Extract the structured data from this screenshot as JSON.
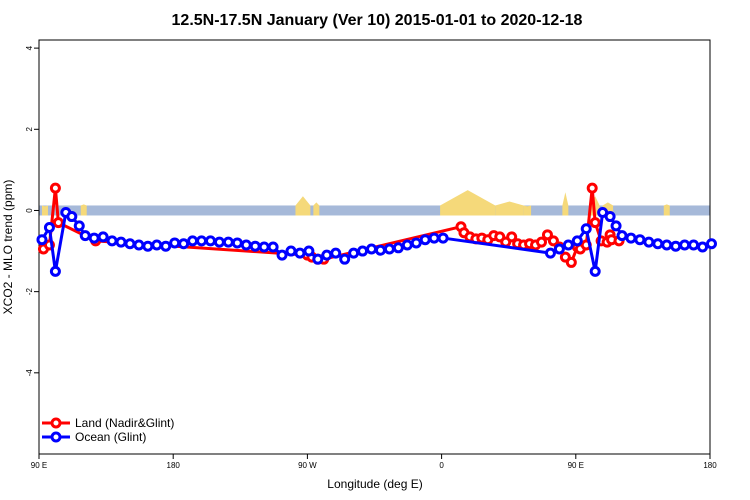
{
  "chart_data": {
    "type": "line",
    "title": "12.5N-17.5N January (Ver 10)   2015-01-01 to 2020-12-18",
    "xlabel": "Longitude (deg E)",
    "ylabel": "XCO2 - MLO trend (ppm)",
    "x_ticks": [
      {
        "value": 90,
        "label": "90 E"
      },
      {
        "value": 180,
        "label": "180"
      },
      {
        "value": 270,
        "label": "90 W"
      },
      {
        "value": 360,
        "label": "0"
      },
      {
        "value": 450,
        "label": "90 E"
      },
      {
        "value": 540,
        "label": "180"
      }
    ],
    "y_ticks": [
      {
        "value": 4,
        "label": "4"
      },
      {
        "value": 2,
        "label": "2"
      },
      {
        "value": 0,
        "label": "0"
      },
      {
        "value": -2,
        "label": "-2"
      },
      {
        "value": -4,
        "label": "-4"
      }
    ],
    "xlim": [
      90,
      540
    ],
    "ylim": [
      -6,
      4.2
    ],
    "grid": false,
    "legend_position": "bottom-left",
    "colors": {
      "land": "#ff0000",
      "ocean": "#0000ff",
      "land_mask": "#f5d97a",
      "ocean_mask": "#a6b9d9"
    },
    "series": [
      {
        "name": "Land (Nadir&Glint)",
        "color": "#ff0000",
        "x": [
          93,
          97,
          101,
          103,
          128,
          270,
          273,
          277,
          281,
          373,
          375,
          379,
          383,
          387,
          391,
          395,
          399,
          403,
          407,
          411,
          415,
          419,
          423,
          427,
          431,
          435,
          439,
          443,
          447,
          451,
          453,
          457,
          461,
          463,
          467,
          471,
          473,
          474,
          479
        ],
        "y": [
          -0.95,
          -0.85,
          0.55,
          -0.3,
          -0.75,
          -1.1,
          -1.15,
          -1.2,
          -1.2,
          -0.4,
          -0.55,
          -0.65,
          -0.7,
          -0.68,
          -0.72,
          -0.62,
          -0.65,
          -0.78,
          -0.65,
          -0.82,
          -0.85,
          -0.82,
          -0.85,
          -0.78,
          -0.6,
          -0.75,
          -0.9,
          -1.15,
          -1.28,
          -0.9,
          -0.95,
          -0.85,
          0.55,
          -0.3,
          -0.75,
          -0.78,
          -0.6,
          -0.72,
          -0.75
        ]
      },
      {
        "name": "Ocean (Glint)",
        "color": "#0000ff",
        "x": [
          92,
          97,
          101,
          108,
          112,
          117,
          121,
          127,
          133,
          139,
          145,
          151,
          157,
          163,
          169,
          175,
          181,
          187,
          193,
          199,
          205,
          211,
          217,
          223,
          229,
          235,
          241,
          247,
          253,
          259,
          265,
          271,
          277,
          283,
          289,
          295,
          301,
          307,
          313,
          319,
          325,
          331,
          337,
          343,
          349,
          355,
          361,
          433,
          439,
          445,
          451,
          457,
          463,
          468,
          473,
          477,
          481,
          487,
          493,
          499,
          505,
          511,
          517,
          523,
          529,
          535,
          541
        ],
        "y": [
          -0.72,
          -0.42,
          -1.5,
          -0.05,
          -0.15,
          -0.38,
          -0.62,
          -0.68,
          -0.65,
          -0.75,
          -0.78,
          -0.82,
          -0.85,
          -0.88,
          -0.85,
          -0.88,
          -0.8,
          -0.82,
          -0.75,
          -0.75,
          -0.75,
          -0.78,
          -0.78,
          -0.8,
          -0.85,
          -0.88,
          -0.9,
          -0.9,
          -1.1,
          -1.0,
          -1.05,
          -1.0,
          -1.2,
          -1.1,
          -1.05,
          -1.2,
          -1.05,
          -1.0,
          -0.95,
          -0.98,
          -0.95,
          -0.92,
          -0.85,
          -0.8,
          -0.72,
          -0.68,
          -0.68,
          -1.05,
          -0.95,
          -0.85,
          -0.75,
          -0.45,
          -1.5,
          -0.05,
          -0.15,
          -0.38,
          -0.62,
          -0.68,
          -0.72,
          -0.78,
          -0.82,
          -0.85,
          -0.88,
          -0.85,
          -0.85,
          -0.9,
          -0.82
        ]
      }
    ],
    "land_mask_ranges": [
      [
        92,
        96,
        0.1
      ],
      [
        118,
        122,
        0.15
      ],
      [
        262,
        272,
        0.35
      ],
      [
        274,
        278,
        0.2
      ],
      [
        359,
        396,
        0.5
      ],
      [
        396,
        415,
        0.22
      ],
      [
        415,
        420,
        0.1
      ],
      [
        441,
        445,
        0.45
      ],
      [
        460,
        466,
        0.35
      ],
      [
        468,
        475,
        0.2
      ],
      [
        509,
        513,
        0.15
      ]
    ]
  }
}
